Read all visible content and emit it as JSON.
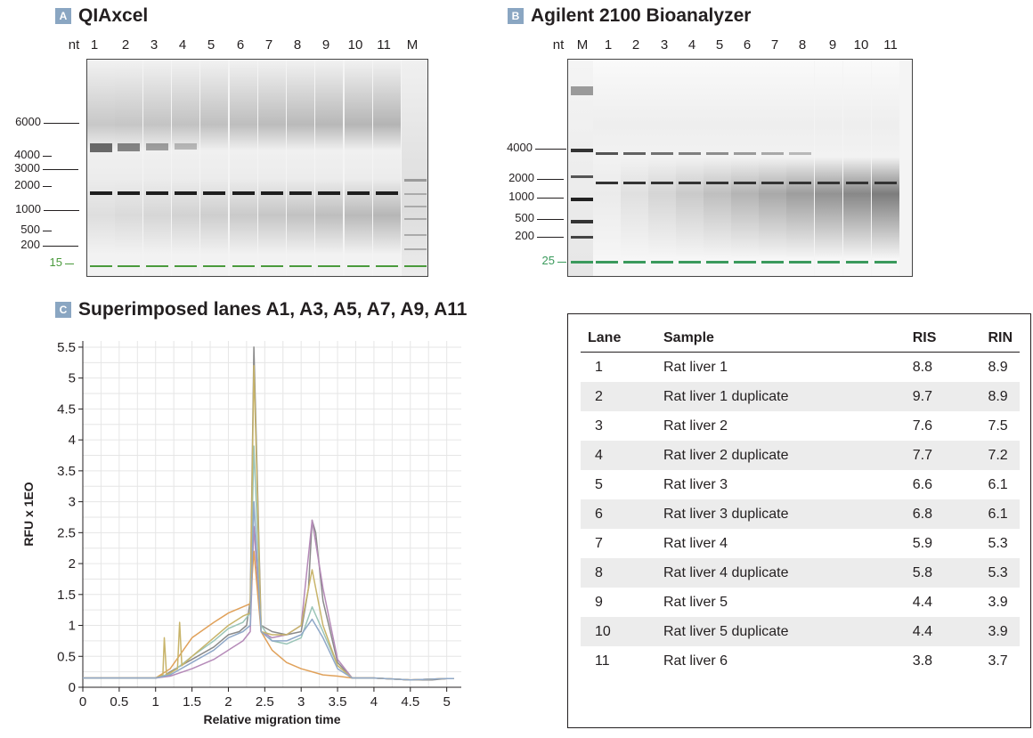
{
  "panel_a": {
    "badge": "A",
    "title": "QIAxcel",
    "lane_labels": [
      "nt",
      "1",
      "2",
      "3",
      "4",
      "5",
      "6",
      "7",
      "8",
      "9",
      "10",
      "11",
      "M"
    ],
    "size_markers": [
      "6000",
      "4000",
      "3000",
      "2000",
      "1000",
      "500",
      "200",
      "15"
    ],
    "marker_color": "#4a9a3c"
  },
  "panel_b": {
    "badge": "B",
    "title": "Agilent 2100 Bioanalyzer",
    "lane_labels": [
      "nt",
      "M",
      "1",
      "2",
      "3",
      "4",
      "5",
      "6",
      "7",
      "8",
      "9",
      "10",
      "11"
    ],
    "size_markers": [
      "4000",
      "2000",
      "1000",
      "500",
      "200",
      "25"
    ],
    "marker_color": "#3a9a5c"
  },
  "chart_data": {
    "type": "line",
    "title": "Superimposed lanes A1, A3, A5, A7, A9, A11",
    "badge": "C",
    "xlabel": "Relative migration time",
    "ylabel": "RFU x 1EO",
    "xlim": [
      0,
      5.2
    ],
    "ylim": [
      0,
      5.6
    ],
    "x_ticks": [
      "0",
      "0.5",
      "1",
      "1.5",
      "2",
      "2.5",
      "3",
      "3.5",
      "4",
      "4.5",
      "5"
    ],
    "y_ticks": [
      "0",
      "0.5",
      "1",
      "1.5",
      "2",
      "2.5",
      "3",
      "3.5",
      "4",
      "4.5",
      "5",
      "5.5"
    ],
    "grid": true,
    "series": [
      {
        "color": "#8a8a8a",
        "x": [
          0,
          1.0,
          1.1,
          1.2,
          1.5,
          1.8,
          2.0,
          2.15,
          2.25,
          2.3,
          2.35,
          2.45,
          2.6,
          2.8,
          3.0,
          3.1,
          3.15,
          3.2,
          3.3,
          3.5,
          3.7,
          4.0,
          4.5,
          4.8,
          5.0,
          5.1
        ],
        "y": [
          0.15,
          0.15,
          0.17,
          0.25,
          0.45,
          0.65,
          0.85,
          0.9,
          1.0,
          1.4,
          5.5,
          1.0,
          0.9,
          0.85,
          0.9,
          1.6,
          2.7,
          2.5,
          1.4,
          0.4,
          0.15,
          0.15,
          0.12,
          0.12,
          0.14,
          0.14
        ]
      },
      {
        "color": "#9bc5b8",
        "x": [
          0,
          1.0,
          1.2,
          1.5,
          1.8,
          2.0,
          2.2,
          2.3,
          2.35,
          2.45,
          2.6,
          2.8,
          3.0,
          3.15,
          3.3,
          3.5,
          3.7,
          4.0,
          4.5,
          5.0,
          5.1
        ],
        "y": [
          0.15,
          0.15,
          0.22,
          0.5,
          0.75,
          0.95,
          1.05,
          1.2,
          3.9,
          1.0,
          0.75,
          0.7,
          0.8,
          1.3,
          0.9,
          0.35,
          0.15,
          0.15,
          0.12,
          0.14,
          0.14
        ]
      },
      {
        "color": "#b58ab8",
        "x": [
          0,
          1.0,
          1.2,
          1.5,
          1.8,
          2.0,
          2.2,
          2.3,
          2.35,
          2.45,
          2.6,
          2.8,
          3.0,
          3.15,
          3.3,
          3.5,
          3.7,
          4.0,
          4.5,
          5.0,
          5.1
        ],
        "y": [
          0.15,
          0.15,
          0.18,
          0.3,
          0.45,
          0.6,
          0.75,
          0.9,
          2.6,
          0.9,
          0.8,
          0.85,
          1.0,
          2.7,
          1.6,
          0.45,
          0.15,
          0.15,
          0.12,
          0.14,
          0.14
        ]
      },
      {
        "color": "#e0a15a",
        "x": [
          0,
          1.0,
          1.2,
          1.5,
          1.8,
          2.0,
          2.2,
          2.3,
          2.35,
          2.45,
          2.6,
          2.8,
          3.0,
          3.15,
          3.3,
          3.5,
          3.7,
          4.0,
          4.5,
          5.0,
          5.1
        ],
        "y": [
          0.15,
          0.15,
          0.3,
          0.8,
          1.05,
          1.2,
          1.3,
          1.35,
          2.2,
          0.9,
          0.6,
          0.4,
          0.3,
          0.25,
          0.2,
          0.18,
          0.15,
          0.15,
          0.12,
          0.14,
          0.14
        ]
      },
      {
        "color": "#c8b46a",
        "x": [
          0,
          1.0,
          1.1,
          1.12,
          1.15,
          1.3,
          1.33,
          1.36,
          1.5,
          1.8,
          2.0,
          2.2,
          2.3,
          2.35,
          2.45,
          2.6,
          2.8,
          3.0,
          3.15,
          3.3,
          3.5,
          3.7,
          4.0,
          4.5,
          5.0,
          5.1
        ],
        "y": [
          0.15,
          0.15,
          0.2,
          0.8,
          0.2,
          0.3,
          1.05,
          0.35,
          0.5,
          0.8,
          1.0,
          1.15,
          1.2,
          5.2,
          0.9,
          0.85,
          0.85,
          1.0,
          1.9,
          1.0,
          0.35,
          0.15,
          0.15,
          0.12,
          0.14,
          0.14
        ]
      },
      {
        "color": "#8fa8c8",
        "x": [
          0,
          1.0,
          1.2,
          1.5,
          1.8,
          2.0,
          2.2,
          2.3,
          2.35,
          2.45,
          2.6,
          2.8,
          3.0,
          3.15,
          3.3,
          3.5,
          3.7,
          4.0,
          4.5,
          5.0,
          5.1
        ],
        "y": [
          0.15,
          0.15,
          0.2,
          0.4,
          0.6,
          0.8,
          0.9,
          1.0,
          3.0,
          0.9,
          0.75,
          0.75,
          0.85,
          1.1,
          0.8,
          0.3,
          0.15,
          0.15,
          0.12,
          0.14,
          0.14
        ]
      }
    ]
  },
  "table": {
    "headers": [
      "Lane",
      "Sample",
      "RIS",
      "RIN"
    ],
    "rows": [
      [
        "1",
        "Rat liver 1",
        "8.8",
        "8.9"
      ],
      [
        "2",
        "Rat liver 1 duplicate",
        "9.7",
        "8.9"
      ],
      [
        "3",
        "Rat liver 2",
        "7.6",
        "7.5"
      ],
      [
        "4",
        "Rat liver 2 duplicate",
        "7.7",
        "7.2"
      ],
      [
        "5",
        "Rat liver 3",
        "6.6",
        "6.1"
      ],
      [
        "6",
        "Rat liver 3 duplicate",
        "6.8",
        "6.1"
      ],
      [
        "7",
        "Rat liver 4",
        "5.9",
        "5.3"
      ],
      [
        "8",
        "Rat liver 4 duplicate",
        "5.8",
        "5.3"
      ],
      [
        "9",
        "Rat liver 5",
        "4.4",
        "3.9"
      ],
      [
        "10",
        "Rat liver 5 duplicate",
        "4.4",
        "3.9"
      ],
      [
        "11",
        "Rat liver 6",
        "3.8",
        "3.7"
      ]
    ]
  }
}
